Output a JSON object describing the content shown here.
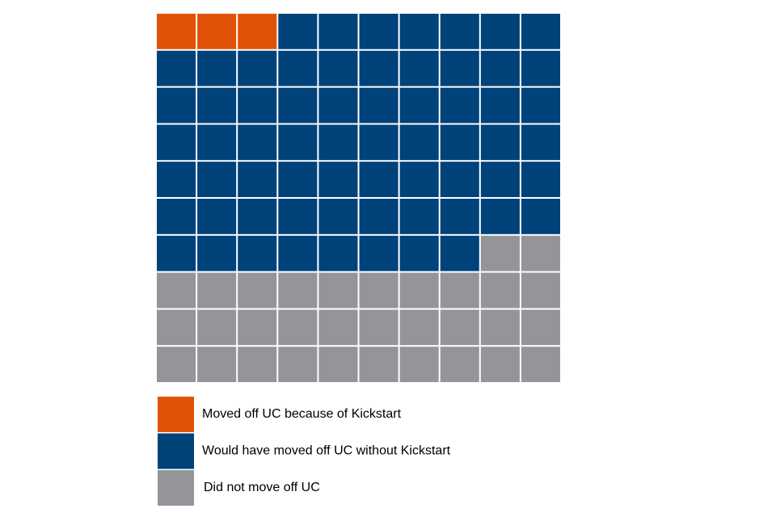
{
  "chart_data": {
    "type": "waffle",
    "categories": [
      "Moved off UC because of Kickstart",
      "Would have moved off UC without Kickstart",
      "Did not move off UC"
    ],
    "values": [
      3,
      65,
      32
    ],
    "colors": [
      "#e05206",
      "#00427a",
      "#939598"
    ]
  }
}
